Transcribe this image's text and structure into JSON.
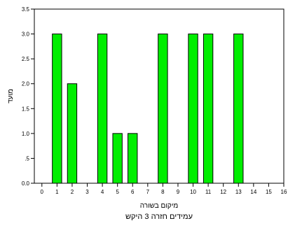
{
  "chart_data": {
    "type": "bar",
    "title": "עמידים חזרה 3 היקש",
    "xlabel": "מיקום בשורה",
    "ylabel": "מועד",
    "x": [
      0,
      1,
      2,
      3,
      4,
      5,
      6,
      7,
      8,
      9,
      10,
      11,
      12,
      13,
      14,
      15,
      16
    ],
    "values": [
      0,
      3,
      2,
      0,
      3,
      1,
      1,
      0,
      3,
      0,
      3,
      3,
      0,
      3,
      0,
      0,
      0
    ],
    "xlim": [
      -0.5,
      16.0
    ],
    "ylim": [
      0,
      3.5
    ],
    "x_ticks": [
      "0",
      "1",
      "2",
      "3",
      "4",
      "5",
      "6",
      "7",
      "8",
      "9",
      "10",
      "11",
      "12",
      "13",
      "14",
      "15",
      "16"
    ],
    "y_ticks": [
      "0.0",
      ".5",
      "1.0",
      "1.5",
      "2.0",
      "2.5",
      "3.0",
      "3.5"
    ],
    "y_tick_values": [
      0,
      0.5,
      1.0,
      1.5,
      2.0,
      2.5,
      3.0,
      3.5
    ],
    "bar_color": "#00ee00",
    "grid": false,
    "legend": "none"
  }
}
